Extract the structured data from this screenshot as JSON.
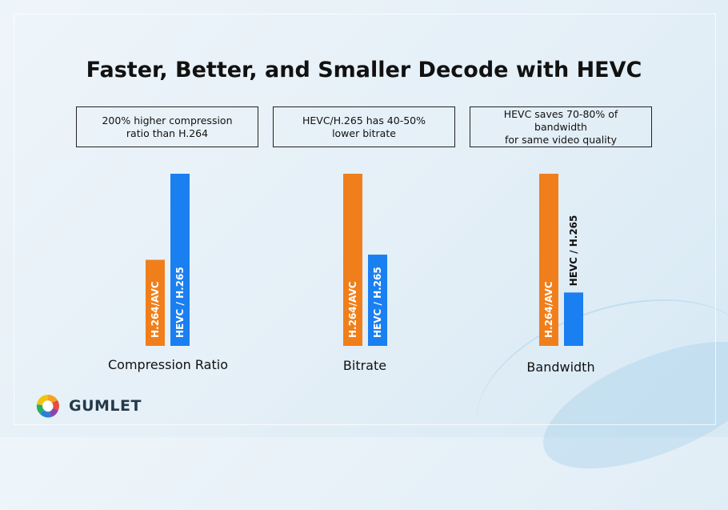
{
  "title": "Faster, Better, and Smaller Decode with HEVC",
  "cards": [
    "200% higher compression\nratio than H.264",
    "HEVC/H.265 has 40-50%\nlower bitrate",
    "HEVC saves 70-80% of bandwidth\nfor same video quality"
  ],
  "brand": {
    "name": "GUMLET"
  },
  "colors": {
    "avc": "#f07f1b",
    "hevc": "#1a7ff0"
  },
  "chart_data": [
    {
      "type": "bar",
      "xlabel": "Compression Ratio",
      "categories": [
        "H.264/AVC",
        "HEVC / H.265"
      ],
      "values": [
        100,
        200
      ]
    },
    {
      "type": "bar",
      "xlabel": "Bitrate",
      "categories": [
        "H.264/AVC",
        "HEVC / H.265"
      ],
      "values": [
        100,
        53
      ]
    },
    {
      "type": "bar",
      "xlabel": "Bandwidth",
      "categories": [
        "H.264/AVC",
        "HEVC / H.265"
      ],
      "values": [
        100,
        31
      ]
    }
  ]
}
